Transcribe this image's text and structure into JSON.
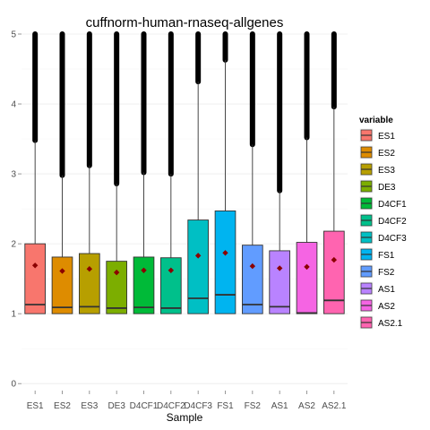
{
  "chart_data": {
    "type": "boxplot",
    "title": "cuffnorm-human-rnaseq-allgenes",
    "xlabel": "Sample",
    "ylabel": "",
    "ylim": [
      -0.1,
      5
    ],
    "yticks": [
      0,
      1,
      2,
      3,
      4,
      5
    ],
    "grid": true,
    "legend": {
      "title": "variable",
      "position": "right"
    },
    "categories": [
      "ES1",
      "ES2",
      "ES3",
      "DE3",
      "D4CF1",
      "D4CF2",
      "D4CF3",
      "FS1",
      "FS2",
      "AS1",
      "AS2",
      "AS2.1"
    ],
    "series": [
      {
        "name": "ES1",
        "color": "#F8766D",
        "min": 1,
        "q1": 1,
        "median": 1.13,
        "q3": 2.0,
        "whisker_high": 3.48,
        "mean": 1.69,
        "outliers_range": [
          3.48,
          5
        ]
      },
      {
        "name": "ES2",
        "color": "#DE8C00",
        "min": 1,
        "q1": 1,
        "median": 1.09,
        "q3": 1.81,
        "whisker_high": 2.98,
        "mean": 1.61,
        "outliers_range": [
          2.98,
          5
        ]
      },
      {
        "name": "ES3",
        "color": "#B79F00",
        "min": 1,
        "q1": 1,
        "median": 1.1,
        "q3": 1.86,
        "whisker_high": 3.12,
        "mean": 1.64,
        "outliers_range": [
          3.12,
          5
        ]
      },
      {
        "name": "DE3",
        "color": "#7CAE00",
        "min": 1,
        "q1": 1,
        "median": 1.08,
        "q3": 1.75,
        "whisker_high": 2.86,
        "mean": 1.59,
        "outliers_range": [
          2.86,
          5
        ]
      },
      {
        "name": "D4CF1",
        "color": "#00BA38",
        "min": 1,
        "q1": 1,
        "median": 1.09,
        "q3": 1.81,
        "whisker_high": 3.02,
        "mean": 1.62,
        "outliers_range": [
          3.02,
          5
        ]
      },
      {
        "name": "D4CF2",
        "color": "#00C08B",
        "min": 1,
        "q1": 1,
        "median": 1.08,
        "q3": 1.8,
        "whisker_high": 3.0,
        "mean": 1.62,
        "outliers_range": [
          3.0,
          5
        ]
      },
      {
        "name": "D4CF3",
        "color": "#00BFC4",
        "min": 1,
        "q1": 1,
        "median": 1.22,
        "q3": 2.34,
        "whisker_high": 4.32,
        "mean": 1.83,
        "outliers_range": [
          4.32,
          5
        ]
      },
      {
        "name": "FS1",
        "color": "#00B4F0",
        "min": 1,
        "q1": 1,
        "median": 1.27,
        "q3": 2.47,
        "whisker_high": 4.63,
        "mean": 1.87,
        "outliers_range": [
          4.63,
          5
        ]
      },
      {
        "name": "FS2",
        "color": "#619CFF",
        "min": 1,
        "q1": 1,
        "median": 1.13,
        "q3": 1.98,
        "whisker_high": 3.42,
        "mean": 1.68,
        "outliers_range": [
          3.42,
          5
        ]
      },
      {
        "name": "AS1",
        "color": "#B983FF",
        "min": 1,
        "q1": 1,
        "median": 1.1,
        "q3": 1.9,
        "whisker_high": 2.76,
        "mean": 1.65,
        "outliers_range": [
          2.76,
          5
        ]
      },
      {
        "name": "AS2",
        "color": "#F564E3",
        "min": 1,
        "q1": 1,
        "median": 1.01,
        "q3": 2.02,
        "whisker_high": 3.52,
        "mean": 1.67,
        "outliers_range": [
          3.52,
          5
        ]
      },
      {
        "name": "AS2.1",
        "color": "#FF64B0",
        "min": 1,
        "q1": 1,
        "median": 1.19,
        "q3": 2.18,
        "whisker_high": 3.96,
        "mean": 1.77,
        "outliers_range": [
          3.96,
          5
        ]
      }
    ],
    "mean_marker_color": "#8B0000"
  }
}
